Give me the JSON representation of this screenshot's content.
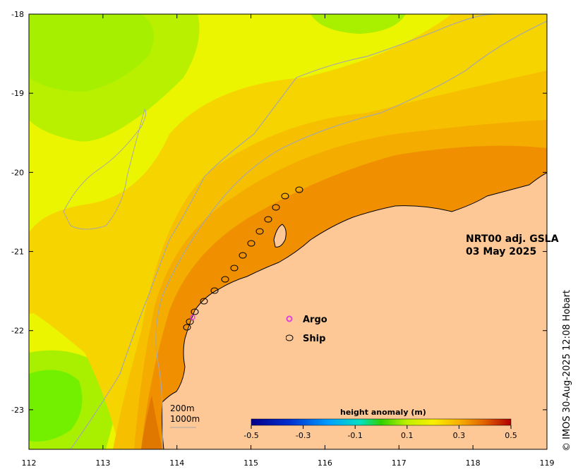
{
  "map": {
    "title_line1": "NRT00 adj. GSLA",
    "title_line2": "03 May 2025",
    "lon_ticks": [
      "112",
      "113",
      "114",
      "115",
      "116",
      "117",
      "118",
      "119"
    ],
    "lat_ticks": [
      "-18",
      "-19",
      "-20",
      "-21",
      "-22",
      "-23"
    ],
    "lon_range": [
      112,
      119
    ],
    "lat_range": [
      -23.5,
      -18
    ],
    "legend": {
      "argo_label": "Argo",
      "ship_label": "Ship",
      "argo_color": "#e040e0",
      "ship_color": "#000000"
    },
    "scale_labels": {
      "isobath_200": "200m",
      "isobath_1000": "1000m"
    },
    "colorbar": {
      "title": "height anomaly (m)",
      "tick_labels": [
        "-0.5",
        "-0.3",
        "-0.1",
        "0.1",
        "0.3",
        "0.5"
      ],
      "range": [
        -0.5,
        0.5
      ]
    },
    "credit": "© IMOS 30-Aug-2025 12:08 Hobart",
    "colors": {
      "land": "#fdc896",
      "coastline": "#000000",
      "isobath": "#a8a8a8",
      "anomaly_low": "#6ef000",
      "anomaly_mid": "#ecf500",
      "anomaly_high": "#f09000"
    }
  }
}
